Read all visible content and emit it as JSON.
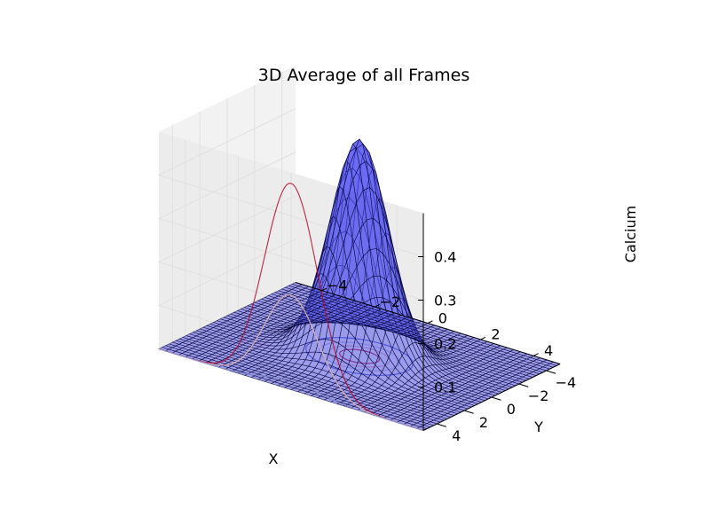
{
  "chart_data": {
    "type": "surface3d",
    "title": "3D Average of all Frames",
    "xlabel": "X",
    "ylabel": "Y",
    "zlabel": "Calcium",
    "xlim": [
      -5,
      5
    ],
    "ylim": [
      -5,
      5
    ],
    "zlim": [
      0,
      0.5
    ],
    "x_ticks": [
      "−4",
      "−2",
      "0",
      "2",
      "4"
    ],
    "y_ticks": [
      "−4",
      "−2",
      "0",
      "2",
      "4"
    ],
    "z_ticks": [
      "0.1",
      "0.2",
      "0.3",
      "0.4"
    ],
    "x_tick_values": [
      -4,
      -2,
      0,
      2,
      4
    ],
    "y_tick_values": [
      -4,
      -2,
      0,
      2,
      4
    ],
    "z_tick_values": [
      0.1,
      0.2,
      0.3,
      0.4
    ],
    "surface": {
      "function": "gaussian",
      "peak": 0.5,
      "center": [
        0,
        0
      ],
      "sigma": 1.0,
      "x_samples": 41,
      "y_samples": 41,
      "face_color": "#6b6bf0",
      "edge_color": "#000033"
    },
    "floor_contours": {
      "levels": [
        0.1,
        0.2,
        0.3,
        0.4
      ],
      "colormap": "coolwarm"
    },
    "grid": true
  }
}
